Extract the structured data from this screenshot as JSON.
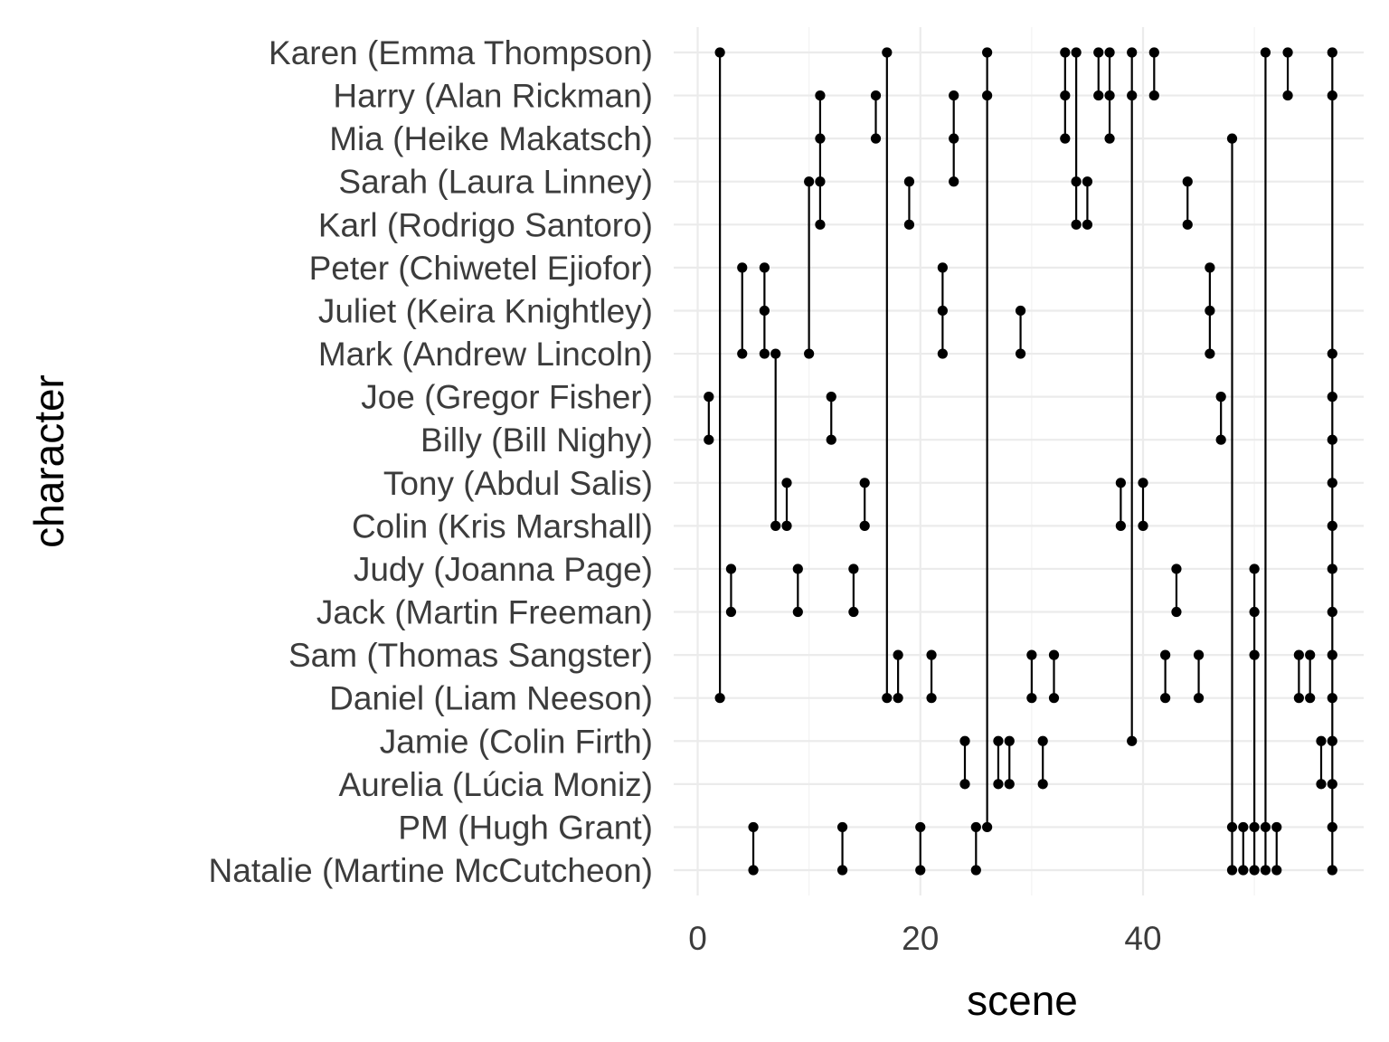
{
  "chart_data": {
    "type": "scatter",
    "subtype": "dot-and-line co-occurrence plot",
    "title": "",
    "xlabel": "scene",
    "ylabel": "character",
    "xlim": [
      -1.5,
      59.5
    ],
    "x_ticks": [
      0,
      20,
      40
    ],
    "grid": true,
    "characters": [
      "Karen (Emma Thompson)",
      "Harry (Alan Rickman)",
      "Mia (Heike Makatsch)",
      "Sarah (Laura Linney)",
      "Karl (Rodrigo Santoro)",
      "Peter (Chiwetel Ejiofor)",
      "Juliet (Keira Knightley)",
      "Mark (Andrew Lincoln)",
      "Joe (Gregor Fisher)",
      "Billy (Bill Nighy)",
      "Tony (Abdul Salis)",
      "Colin (Kris Marshall)",
      "Judy (Joanna Page)",
      "Jack (Martin Freeman)",
      "Sam (Thomas Sangster)",
      "Daniel (Liam Neeson)",
      "Jamie (Colin Firth)",
      "Aurelia (Lúcia Moniz)",
      "PM (Hugh Grant)",
      "Natalie (Martine McCutcheon)"
    ],
    "scenes": [
      {
        "scene": 1,
        "characters": [
          "Joe (Gregor Fisher)",
          "Billy (Bill Nighy)"
        ]
      },
      {
        "scene": 2,
        "characters": [
          "Karen (Emma Thompson)",
          "Daniel (Liam Neeson)"
        ]
      },
      {
        "scene": 3,
        "characters": [
          "Judy (Joanna Page)",
          "Jack (Martin Freeman)"
        ]
      },
      {
        "scene": 4,
        "characters": [
          "Peter (Chiwetel Ejiofor)",
          "Mark (Andrew Lincoln)"
        ]
      },
      {
        "scene": 5,
        "characters": [
          "PM (Hugh Grant)",
          "Natalie (Martine McCutcheon)"
        ]
      },
      {
        "scene": 6,
        "characters": [
          "Peter (Chiwetel Ejiofor)",
          "Juliet (Keira Knightley)",
          "Mark (Andrew Lincoln)"
        ]
      },
      {
        "scene": 7,
        "characters": [
          "Mark (Andrew Lincoln)",
          "Colin (Kris Marshall)"
        ]
      },
      {
        "scene": 8,
        "characters": [
          "Tony (Abdul Salis)",
          "Colin (Kris Marshall)"
        ]
      },
      {
        "scene": 9,
        "characters": [
          "Judy (Joanna Page)",
          "Jack (Martin Freeman)"
        ]
      },
      {
        "scene": 10,
        "characters": [
          "Sarah (Laura Linney)",
          "Mark (Andrew Lincoln)"
        ]
      },
      {
        "scene": 11,
        "characters": [
          "Harry (Alan Rickman)",
          "Mia (Heike Makatsch)",
          "Sarah (Laura Linney)",
          "Karl (Rodrigo Santoro)"
        ]
      },
      {
        "scene": 12,
        "characters": [
          "Joe (Gregor Fisher)",
          "Billy (Bill Nighy)"
        ]
      },
      {
        "scene": 13,
        "characters": [
          "PM (Hugh Grant)",
          "Natalie (Martine McCutcheon)"
        ]
      },
      {
        "scene": 14,
        "characters": [
          "Judy (Joanna Page)",
          "Jack (Martin Freeman)"
        ]
      },
      {
        "scene": 15,
        "characters": [
          "Tony (Abdul Salis)",
          "Colin (Kris Marshall)"
        ]
      },
      {
        "scene": 16,
        "characters": [
          "Harry (Alan Rickman)",
          "Mia (Heike Makatsch)"
        ]
      },
      {
        "scene": 17,
        "characters": [
          "Karen (Emma Thompson)",
          "Daniel (Liam Neeson)"
        ]
      },
      {
        "scene": 18,
        "characters": [
          "Sam (Thomas Sangster)",
          "Daniel (Liam Neeson)"
        ]
      },
      {
        "scene": 19,
        "characters": [
          "Sarah (Laura Linney)",
          "Karl (Rodrigo Santoro)"
        ]
      },
      {
        "scene": 20,
        "characters": [
          "PM (Hugh Grant)",
          "Natalie (Martine McCutcheon)"
        ]
      },
      {
        "scene": 21,
        "characters": [
          "Sam (Thomas Sangster)",
          "Daniel (Liam Neeson)"
        ]
      },
      {
        "scene": 22,
        "characters": [
          "Peter (Chiwetel Ejiofor)",
          "Juliet (Keira Knightley)",
          "Mark (Andrew Lincoln)"
        ]
      },
      {
        "scene": 23,
        "characters": [
          "Harry (Alan Rickman)",
          "Mia (Heike Makatsch)",
          "Sarah (Laura Linney)"
        ]
      },
      {
        "scene": 24,
        "characters": [
          "Jamie (Colin Firth)",
          "Aurelia (Lúcia Moniz)"
        ]
      },
      {
        "scene": 25,
        "characters": [
          "PM (Hugh Grant)",
          "Natalie (Martine McCutcheon)"
        ]
      },
      {
        "scene": 26,
        "characters": [
          "Karen (Emma Thompson)",
          "Harry (Alan Rickman)",
          "PM (Hugh Grant)"
        ]
      },
      {
        "scene": 27,
        "characters": [
          "Jamie (Colin Firth)",
          "Aurelia (Lúcia Moniz)"
        ]
      },
      {
        "scene": 28,
        "characters": [
          "Jamie (Colin Firth)",
          "Aurelia (Lúcia Moniz)"
        ]
      },
      {
        "scene": 29,
        "characters": [
          "Juliet (Keira Knightley)",
          "Mark (Andrew Lincoln)"
        ]
      },
      {
        "scene": 30,
        "characters": [
          "Sam (Thomas Sangster)",
          "Daniel (Liam Neeson)"
        ]
      },
      {
        "scene": 31,
        "characters": [
          "Jamie (Colin Firth)",
          "Aurelia (Lúcia Moniz)"
        ]
      },
      {
        "scene": 32,
        "characters": [
          "Sam (Thomas Sangster)",
          "Daniel (Liam Neeson)"
        ]
      },
      {
        "scene": 33,
        "characters": [
          "Karen (Emma Thompson)",
          "Harry (Alan Rickman)",
          "Mia (Heike Makatsch)"
        ]
      },
      {
        "scene": 34,
        "characters": [
          "Karen (Emma Thompson)",
          "Sarah (Laura Linney)",
          "Karl (Rodrigo Santoro)"
        ]
      },
      {
        "scene": 35,
        "characters": [
          "Sarah (Laura Linney)",
          "Karl (Rodrigo Santoro)"
        ]
      },
      {
        "scene": 36,
        "characters": [
          "Karen (Emma Thompson)",
          "Harry (Alan Rickman)"
        ]
      },
      {
        "scene": 37,
        "characters": [
          "Karen (Emma Thompson)",
          "Harry (Alan Rickman)",
          "Mia (Heike Makatsch)"
        ]
      },
      {
        "scene": 38,
        "characters": [
          "Tony (Abdul Salis)",
          "Colin (Kris Marshall)"
        ]
      },
      {
        "scene": 39,
        "characters": [
          "Karen (Emma Thompson)",
          "Harry (Alan Rickman)",
          "Jamie (Colin Firth)"
        ]
      },
      {
        "scene": 40,
        "characters": [
          "Tony (Abdul Salis)",
          "Colin (Kris Marshall)"
        ]
      },
      {
        "scene": 41,
        "characters": [
          "Karen (Emma Thompson)",
          "Harry (Alan Rickman)"
        ]
      },
      {
        "scene": 42,
        "characters": [
          "Sam (Thomas Sangster)",
          "Daniel (Liam Neeson)"
        ]
      },
      {
        "scene": 43,
        "characters": [
          "Judy (Joanna Page)",
          "Jack (Martin Freeman)"
        ]
      },
      {
        "scene": 44,
        "characters": [
          "Sarah (Laura Linney)",
          "Karl (Rodrigo Santoro)"
        ]
      },
      {
        "scene": 45,
        "characters": [
          "Sam (Thomas Sangster)",
          "Daniel (Liam Neeson)"
        ]
      },
      {
        "scene": 46,
        "characters": [
          "Peter (Chiwetel Ejiofor)",
          "Juliet (Keira Knightley)",
          "Mark (Andrew Lincoln)"
        ]
      },
      {
        "scene": 47,
        "characters": [
          "Joe (Gregor Fisher)",
          "Billy (Bill Nighy)"
        ]
      },
      {
        "scene": 48,
        "characters": [
          "Mia (Heike Makatsch)",
          "PM (Hugh Grant)",
          "Natalie (Martine McCutcheon)"
        ]
      },
      {
        "scene": 49,
        "characters": [
          "PM (Hugh Grant)",
          "Natalie (Martine McCutcheon)"
        ]
      },
      {
        "scene": 50,
        "characters": [
          "Judy (Joanna Page)",
          "Jack (Martin Freeman)",
          "Sam (Thomas Sangster)",
          "PM (Hugh Grant)",
          "Natalie (Martine McCutcheon)"
        ]
      },
      {
        "scene": 51,
        "characters": [
          "Karen (Emma Thompson)",
          "PM (Hugh Grant)",
          "Natalie (Martine McCutcheon)"
        ]
      },
      {
        "scene": 52,
        "characters": [
          "PM (Hugh Grant)",
          "Natalie (Martine McCutcheon)"
        ]
      },
      {
        "scene": 53,
        "characters": [
          "Karen (Emma Thompson)",
          "Harry (Alan Rickman)"
        ]
      },
      {
        "scene": 54,
        "characters": [
          "Sam (Thomas Sangster)",
          "Daniel (Liam Neeson)"
        ]
      },
      {
        "scene": 55,
        "characters": [
          "Sam (Thomas Sangster)",
          "Daniel (Liam Neeson)"
        ]
      },
      {
        "scene": 56,
        "characters": [
          "Jamie (Colin Firth)",
          "Aurelia (Lúcia Moniz)"
        ]
      },
      {
        "scene": 57,
        "characters": [
          "Karen (Emma Thompson)",
          "Harry (Alan Rickman)",
          "Mark (Andrew Lincoln)",
          "Joe (Gregor Fisher)",
          "Billy (Bill Nighy)",
          "Tony (Abdul Salis)",
          "Colin (Kris Marshall)",
          "Judy (Joanna Page)",
          "Jack (Martin Freeman)",
          "Sam (Thomas Sangster)",
          "Daniel (Liam Neeson)",
          "Jamie (Colin Firth)",
          "Aurelia (Lúcia Moniz)",
          "PM (Hugh Grant)",
          "Natalie (Martine McCutcheon)"
        ]
      }
    ]
  }
}
